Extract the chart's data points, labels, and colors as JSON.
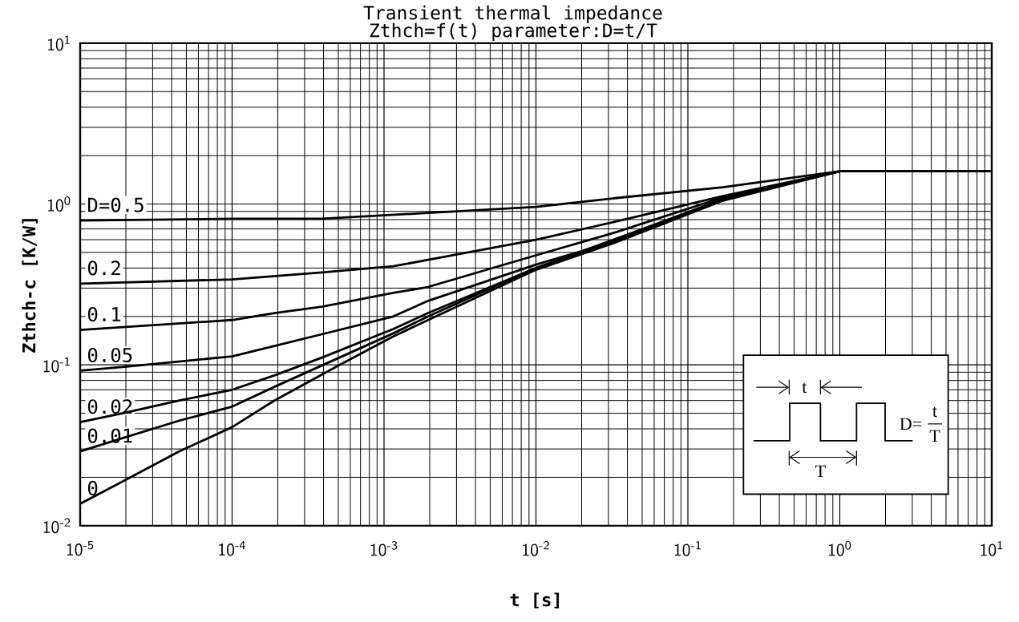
{
  "chart_data": {
    "type": "line",
    "title": "Transient thermal impedance",
    "subtitle": "Zthch=f(t) parameter:D=t/T",
    "xlabel": "t [s]",
    "ylabel": "Zthch-c [K/W]",
    "log": "xy",
    "grid": true,
    "xlim": [
      1e-05,
      10
    ],
    "ylim": [
      0.01,
      10
    ],
    "xticks": [
      {
        "value": 1e-05,
        "label": "10$^{-5}$"
      },
      {
        "value": 0.0001,
        "label": "10$^{-4}$"
      },
      {
        "value": 0.001,
        "label": "10$^{-3}$"
      },
      {
        "value": 0.01,
        "label": "10$^{-2}$"
      },
      {
        "value": 0.1,
        "label": "10$^{-1}$"
      },
      {
        "value": 1,
        "label": "10$^{0}$"
      },
      {
        "value": 10,
        "label": "10$^{1}$"
      }
    ],
    "yticks": [
      {
        "value": 0.01,
        "label": "10$^{-2}$"
      },
      {
        "value": 0.1,
        "label": "10$^{-1}$"
      },
      {
        "value": 1,
        "label": "10$^{0}$"
      },
      {
        "value": 10,
        "label": "10$^{1}$"
      }
    ],
    "series": [
      {
        "name": "D=0.5",
        "color": "#000000",
        "x": [
          1e-05,
          0.0001,
          0.00039,
          0.00195,
          0.01,
          0.034,
          0.17,
          1,
          10
        ],
        "values": [
          0.79,
          0.81,
          0.81,
          0.88,
          0.96,
          1.09,
          1.27,
          1.6,
          1.6
        ]
      },
      {
        "name": "0.2",
        "color": "#000000",
        "x": [
          1e-05,
          0.0001,
          0.00039,
          0.00115,
          0.00195,
          0.01,
          0.034,
          0.17,
          1,
          10
        ],
        "values": [
          0.32,
          0.34,
          0.376,
          0.41,
          0.45,
          0.6,
          0.78,
          1.12,
          1.6,
          1.6
        ]
      },
      {
        "name": "0.1",
        "color": "#000000",
        "x": [
          1e-05,
          0.0001,
          0.00019,
          0.00039,
          0.00115,
          0.00195,
          0.01,
          0.034,
          0.17,
          1,
          10
        ],
        "values": [
          0.165,
          0.19,
          0.21,
          0.23,
          0.28,
          0.305,
          0.48,
          0.67,
          1.1,
          1.6,
          1.6
        ]
      },
      {
        "name": "0.05",
        "color": "#000000",
        "x": [
          1e-05,
          1.9e-05,
          0.0001,
          0.00019,
          0.00039,
          0.00115,
          0.00195,
          0.01,
          0.034,
          0.17,
          1,
          10
        ],
        "values": [
          0.092,
          0.097,
          0.113,
          0.131,
          0.155,
          0.2,
          0.25,
          0.42,
          0.59,
          1.08,
          1.6,
          1.6
        ]
      },
      {
        "name": "0.02",
        "color": "#000000",
        "x": [
          1e-05,
          1.9e-05,
          4.5e-05,
          0.0001,
          0.00019,
          0.00039,
          0.00115,
          0.00195,
          0.01,
          0.034,
          0.17,
          1,
          10
        ],
        "values": [
          0.044,
          0.05,
          0.06,
          0.07,
          0.086,
          0.111,
          0.167,
          0.21,
          0.4,
          0.61,
          1.07,
          1.6,
          1.6
        ]
      },
      {
        "name": "0.01",
        "color": "#000000",
        "x": [
          1e-05,
          1.9e-05,
          4.5e-05,
          0.0001,
          0.00019,
          0.00115,
          0.00195,
          0.01,
          0.034,
          0.17,
          1,
          10
        ],
        "values": [
          0.029,
          0.035,
          0.045,
          0.055,
          0.073,
          0.157,
          0.2,
          0.4,
          0.59,
          1.06,
          1.6,
          1.6
        ]
      },
      {
        "name": "0",
        "color": "#000000",
        "x": [
          1e-05,
          1.9e-05,
          4.5e-05,
          0.0001,
          0.00019,
          0.00051,
          0.00115,
          0.00195,
          0.01,
          0.034,
          0.17,
          1,
          10
        ],
        "values": [
          0.0137,
          0.0188,
          0.029,
          0.041,
          0.06,
          0.1,
          0.15,
          0.19,
          0.39,
          0.58,
          1.05,
          1.6,
          1.6
        ]
      }
    ],
    "annotations": [
      "t",
      "T",
      "D=",
      "t",
      "T"
    ]
  }
}
